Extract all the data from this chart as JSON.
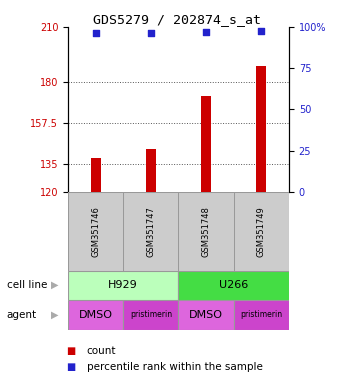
{
  "title": "GDS5279 / 202874_s_at",
  "samples": [
    "GSM351746",
    "GSM351747",
    "GSM351748",
    "GSM351749"
  ],
  "bar_values": [
    138.5,
    143.5,
    172.5,
    188.5
  ],
  "bar_bottom": 120,
  "bar_color": "#cc0000",
  "bar_width": 0.18,
  "percentile_values": [
    96.5,
    96.5,
    97.0,
    97.5
  ],
  "percentile_color": "#2222cc",
  "y_left_ticks": [
    120,
    135,
    157.5,
    180,
    210
  ],
  "y_left_tick_labels": [
    "120",
    "135",
    "157.5",
    "180",
    "210"
  ],
  "y_left_color": "#cc0000",
  "y_right_ticks": [
    0,
    25,
    50,
    75,
    100
  ],
  "y_right_labels": [
    "0",
    "25",
    "50",
    "75",
    "100%"
  ],
  "y_right_color": "#2222cc",
  "ylim": [
    120,
    210
  ],
  "cell_line_labels": [
    "H929",
    "U266"
  ],
  "cell_line_colors": [
    "#bbffbb",
    "#44dd44"
  ],
  "agent_labels": [
    "DMSO",
    "pristimerin",
    "DMSO",
    "pristimerin"
  ],
  "agent_colors": [
    "#dd66dd",
    "#cc44cc",
    "#dd66dd",
    "#cc44cc"
  ],
  "cell_line_row_label": "cell line",
  "agent_row_label": "agent",
  "sample_box_color": "#cccccc",
  "legend_count_color": "#cc0000",
  "legend_percentile_color": "#2222cc",
  "background_color": "#ffffff",
  "dotted_line_color": "#555555",
  "arrow_color": "#aaaaaa"
}
